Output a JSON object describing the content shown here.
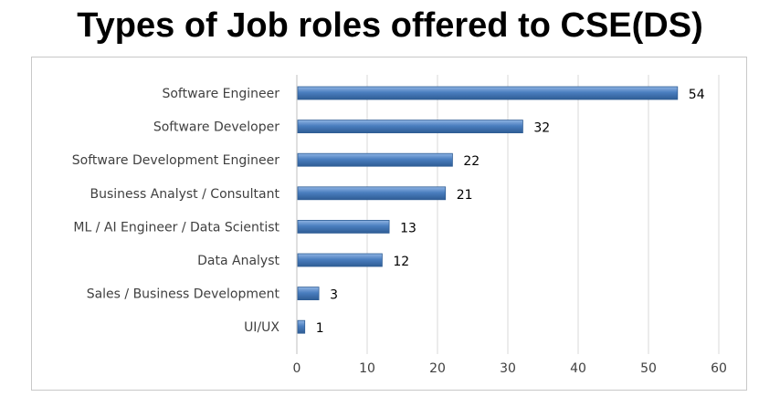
{
  "chart_data": {
    "type": "bar",
    "orientation": "horizontal",
    "title": "Types of Job roles offered to CSE(DS)",
    "categories": [
      "Software Engineer",
      "Software Developer",
      "Software Development Engineer",
      "Business Analyst / Consultant",
      "ML / AI Engineer / Data Scientist",
      "Data Analyst",
      "Sales / Business Development",
      "UI/UX"
    ],
    "values": [
      54,
      32,
      22,
      21,
      13,
      12,
      3,
      1
    ],
    "xlim": [
      0,
      60
    ],
    "xticks": [
      0,
      10,
      20,
      30,
      40,
      50,
      60
    ],
    "grid": true,
    "bar_color": "#4a7ebf",
    "bar_highlight": "#8fb4e3",
    "bar_edge": "#2f5d95"
  }
}
